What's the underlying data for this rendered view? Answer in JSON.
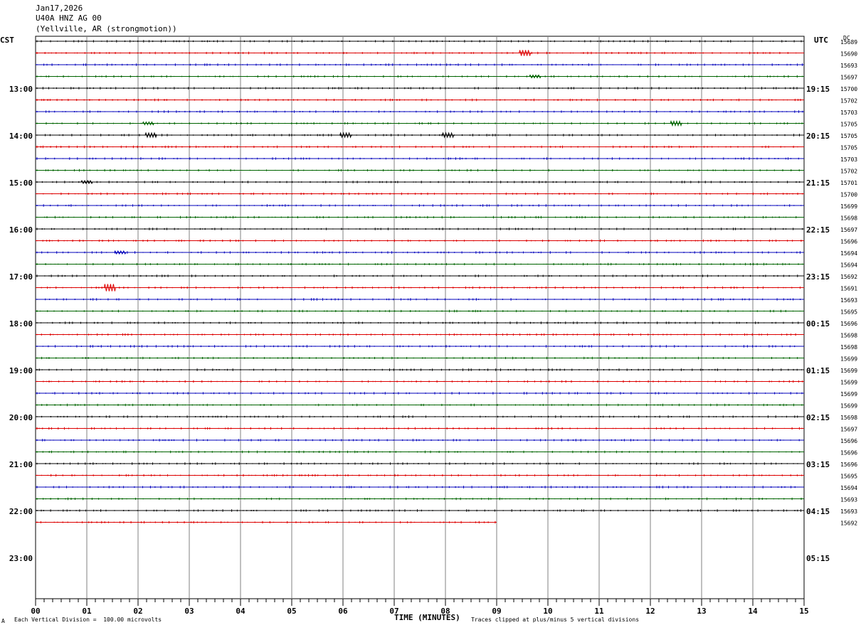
{
  "header": {
    "date": "Jan17,2026",
    "station": "U40A HNZ AG 00",
    "location": "(Yellville, AR (strongmotion))"
  },
  "left_tz": "CST",
  "right_tz": "UTC",
  "dc_label": "DC",
  "footer": {
    "scale_note": "Each Vertical Division =  100.00 microvolts",
    "x_title": "TIME (MINUTES)",
    "clip_note": "Traces clipped at plus/minus 5 vertical divisions",
    "corner_mark": "A"
  },
  "colors": {
    "black": "#000000",
    "red": "#dd0000",
    "blue": "#0000bb",
    "green": "#006400",
    "grid": "#808080"
  },
  "chart_data": {
    "type": "line",
    "title": "",
    "xlabel": "TIME (MINUTES)",
    "xlim": [
      0,
      15
    ],
    "x_ticks": [
      "00",
      "01",
      "02",
      "03",
      "04",
      "05",
      "06",
      "07",
      "08",
      "09",
      "10",
      "11",
      "12",
      "13",
      "14",
      "15"
    ],
    "rows_per_hour": 4,
    "cst_hour_labels": [
      "13:00",
      "14:00",
      "15:00",
      "16:00",
      "17:00",
      "18:00",
      "19:00",
      "20:00",
      "21:00",
      "22:00",
      "23:00"
    ],
    "utc_hour_labels": [
      "19:15",
      "20:15",
      "21:15",
      "22:15",
      "23:15",
      "00:15",
      "01:15",
      "02:15",
      "03:15",
      "04:15",
      "05:15"
    ],
    "trace_color_cycle": [
      "black",
      "red",
      "blue",
      "green"
    ],
    "last_trace_end_minute": 9.0,
    "dc_values": [
      "15689",
      "15690",
      "15693",
      "15697",
      "15700",
      "15702",
      "15703",
      "15705",
      "15705",
      "15705",
      "15703",
      "15702",
      "15701",
      "15700",
      "15699",
      "15698",
      "15697",
      "15696",
      "15694",
      "15694",
      "15692",
      "15691",
      "15693",
      "15695",
      "15696",
      "15698",
      "15698",
      "15699",
      "15699",
      "15699",
      "15699",
      "15699",
      "15698",
      "15697",
      "15696",
      "15696",
      "15696",
      "15695",
      "15694",
      "15693",
      "15693",
      "15692"
    ],
    "events": [
      {
        "row": 1,
        "minute": 9.55,
        "amp": 4
      },
      {
        "row": 3,
        "minute": 9.75,
        "amp": 2
      },
      {
        "row": 7,
        "minute": 2.2,
        "amp": 2
      },
      {
        "row": 7,
        "minute": 12.5,
        "amp": 3
      },
      {
        "row": 8,
        "minute": 2.25,
        "amp": 3
      },
      {
        "row": 8,
        "minute": 6.05,
        "amp": 3
      },
      {
        "row": 8,
        "minute": 8.05,
        "amp": 3
      },
      {
        "row": 12,
        "minute": 1.0,
        "amp": 2
      },
      {
        "row": 21,
        "minute": 1.45,
        "amp": 5
      },
      {
        "row": 18,
        "minute": 1.65,
        "amp": 2
      }
    ]
  }
}
